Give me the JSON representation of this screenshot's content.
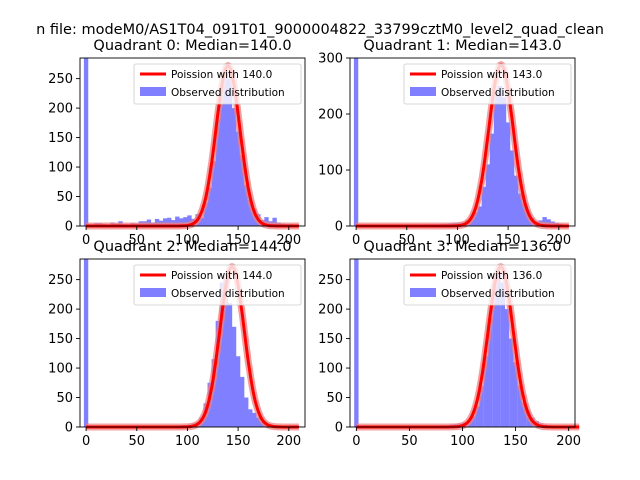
{
  "figure": {
    "suptitle": "n file: modeM0/AS1T04_091T01_9000004822_33799cztM0_level2_quad_clean"
  },
  "colors": {
    "hist": "#7f7fff",
    "fit": "#ff0000",
    "fit_halo": "#f08080",
    "axis": "#000000"
  },
  "chart_data": [
    {
      "type": "bar",
      "title": "Quadrant 0: Median=140.0",
      "legend": {
        "fit": "Poission with 140.0",
        "hist": "Observed distribution",
        "placement": "top-right"
      },
      "xlim": [
        -6,
        216
      ],
      "ylim": [
        0,
        285
      ],
      "xticks": [
        0,
        50,
        100,
        150,
        200
      ],
      "yticks": [
        0,
        50,
        100,
        150,
        200,
        250
      ],
      "bin_width": 4.3,
      "spike": {
        "x": 0,
        "value": 285
      },
      "hist_x": [
        2,
        6,
        10,
        14,
        18,
        22,
        26,
        30,
        34,
        38,
        42,
        46,
        50,
        54,
        58,
        62,
        66,
        70,
        74,
        78,
        82,
        86,
        90,
        94,
        98,
        102,
        106,
        110,
        114,
        118,
        122,
        126,
        130,
        134,
        138,
        142,
        146,
        150,
        154,
        158,
        162,
        166,
        170,
        174,
        178,
        182,
        186,
        190,
        194,
        198,
        202,
        206,
        210
      ],
      "hist_values": [
        3,
        2,
        5,
        5,
        3,
        2,
        6,
        4,
        8,
        3,
        2,
        5,
        4,
        8,
        8,
        11,
        6,
        12,
        9,
        13,
        14,
        10,
        16,
        13,
        15,
        18,
        12,
        20,
        14,
        40,
        65,
        110,
        180,
        240,
        265,
        250,
        200,
        160,
        120,
        70,
        45,
        28,
        20,
        10,
        15,
        8,
        14,
        6,
        4,
        3,
        3,
        2,
        1
      ],
      "fit": {
        "mean": 140,
        "sigma": 11.8,
        "peak": 272
      }
    },
    {
      "type": "bar",
      "title": "Quadrant 1: Median=143.0",
      "legend": {
        "fit": "Poission with 143.0",
        "hist": "Observed distribution",
        "placement": "top-right"
      },
      "xlim": [
        -6,
        216
      ],
      "ylim": [
        0,
        300
      ],
      "xticks": [
        0,
        50,
        100,
        150,
        200
      ],
      "yticks": [
        0,
        100,
        200,
        300
      ],
      "bin_width": 4.3,
      "spike": {
        "x": 0,
        "value": 300
      },
      "hist_x": [
        2,
        6,
        10,
        14,
        18,
        22,
        26,
        30,
        34,
        38,
        42,
        46,
        50,
        54,
        58,
        62,
        66,
        70,
        74,
        78,
        82,
        86,
        90,
        94,
        98,
        102,
        106,
        110,
        114,
        118,
        122,
        126,
        130,
        134,
        138,
        142,
        146,
        150,
        154,
        158,
        162,
        166,
        170,
        174,
        178,
        182,
        186,
        190,
        194,
        198,
        202,
        206,
        210
      ],
      "hist_values": [
        1,
        1,
        1,
        1,
        1,
        1,
        1,
        1,
        1,
        2,
        1,
        1,
        2,
        1,
        2,
        2,
        2,
        3,
        2,
        3,
        3,
        4,
        4,
        5,
        6,
        6,
        6,
        10,
        14,
        25,
        35,
        70,
        110,
        165,
        240,
        250,
        230,
        185,
        135,
        90,
        58,
        42,
        24,
        14,
        8,
        10,
        16,
        12,
        8,
        6,
        4,
        2,
        1
      ],
      "fit": {
        "mean": 143,
        "sigma": 12.0,
        "peak": 288
      }
    },
    {
      "type": "bar",
      "title": "Quadrant 2: Median=144.0",
      "legend": {
        "fit": "Poission with 144.0",
        "hist": "Observed distribution",
        "placement": "top-right"
      },
      "xlim": [
        -6,
        216
      ],
      "ylim": [
        0,
        285
      ],
      "xticks": [
        0,
        50,
        100,
        150,
        200
      ],
      "yticks": [
        0,
        50,
        100,
        150,
        200,
        250
      ],
      "bin_width": 4.3,
      "spike": {
        "x": 0,
        "value": 285
      },
      "hist_x": [
        2,
        6,
        10,
        14,
        18,
        22,
        26,
        30,
        34,
        38,
        42,
        46,
        50,
        54,
        58,
        62,
        66,
        70,
        74,
        78,
        82,
        86,
        90,
        94,
        98,
        102,
        106,
        110,
        114,
        118,
        122,
        126,
        130,
        134,
        138,
        142,
        146,
        150,
        154,
        158,
        162,
        166,
        170,
        174,
        178,
        182,
        186,
        190,
        194,
        198,
        202,
        206,
        210
      ],
      "hist_values": [
        1,
        1,
        1,
        1,
        1,
        1,
        1,
        1,
        1,
        1,
        1,
        1,
        1,
        1,
        1,
        1,
        2,
        1,
        2,
        1,
        2,
        2,
        2,
        3,
        3,
        4,
        6,
        8,
        16,
        40,
        75,
        115,
        180,
        245,
        255,
        210,
        170,
        120,
        85,
        50,
        30,
        24,
        16,
        9,
        6,
        5,
        3,
        2,
        1,
        2,
        1,
        1,
        1
      ],
      "fit": {
        "mean": 144,
        "sigma": 12.0,
        "peak": 272
      }
    },
    {
      "type": "bar",
      "title": "Quadrant 3: Median=136.0",
      "legend": {
        "fit": "Poission with 136.0",
        "hist": "Observed distribution",
        "placement": "top-right"
      },
      "xlim": [
        -6,
        206
      ],
      "ylim": [
        0,
        285
      ],
      "xticks": [
        0,
        50,
        100,
        150,
        200
      ],
      "yticks": [
        0,
        50,
        100,
        150,
        200,
        250
      ],
      "bin_width": 4.1,
      "spike": {
        "x": 0,
        "value": 285
      },
      "hist_x": [
        2,
        6,
        10,
        14,
        18,
        22,
        26,
        30,
        34,
        38,
        42,
        46,
        50,
        54,
        58,
        62,
        66,
        70,
        74,
        78,
        82,
        86,
        90,
        94,
        98,
        102,
        106,
        110,
        114,
        118,
        122,
        126,
        130,
        134,
        138,
        142,
        146,
        150,
        154,
        158,
        162,
        166,
        170,
        174,
        178,
        182,
        186,
        190,
        194,
        198
      ],
      "hist_values": [
        1,
        1,
        1,
        1,
        1,
        1,
        1,
        1,
        1,
        1,
        1,
        1,
        1,
        1,
        1,
        1,
        1,
        1,
        2,
        2,
        3,
        3,
        4,
        5,
        6,
        7,
        10,
        18,
        35,
        70,
        120,
        185,
        240,
        260,
        245,
        200,
        150,
        110,
        70,
        42,
        26,
        16,
        10,
        6,
        4,
        2,
        2,
        1,
        1,
        1
      ],
      "fit": {
        "mean": 136,
        "sigma": 11.7,
        "peak": 272
      }
    }
  ]
}
